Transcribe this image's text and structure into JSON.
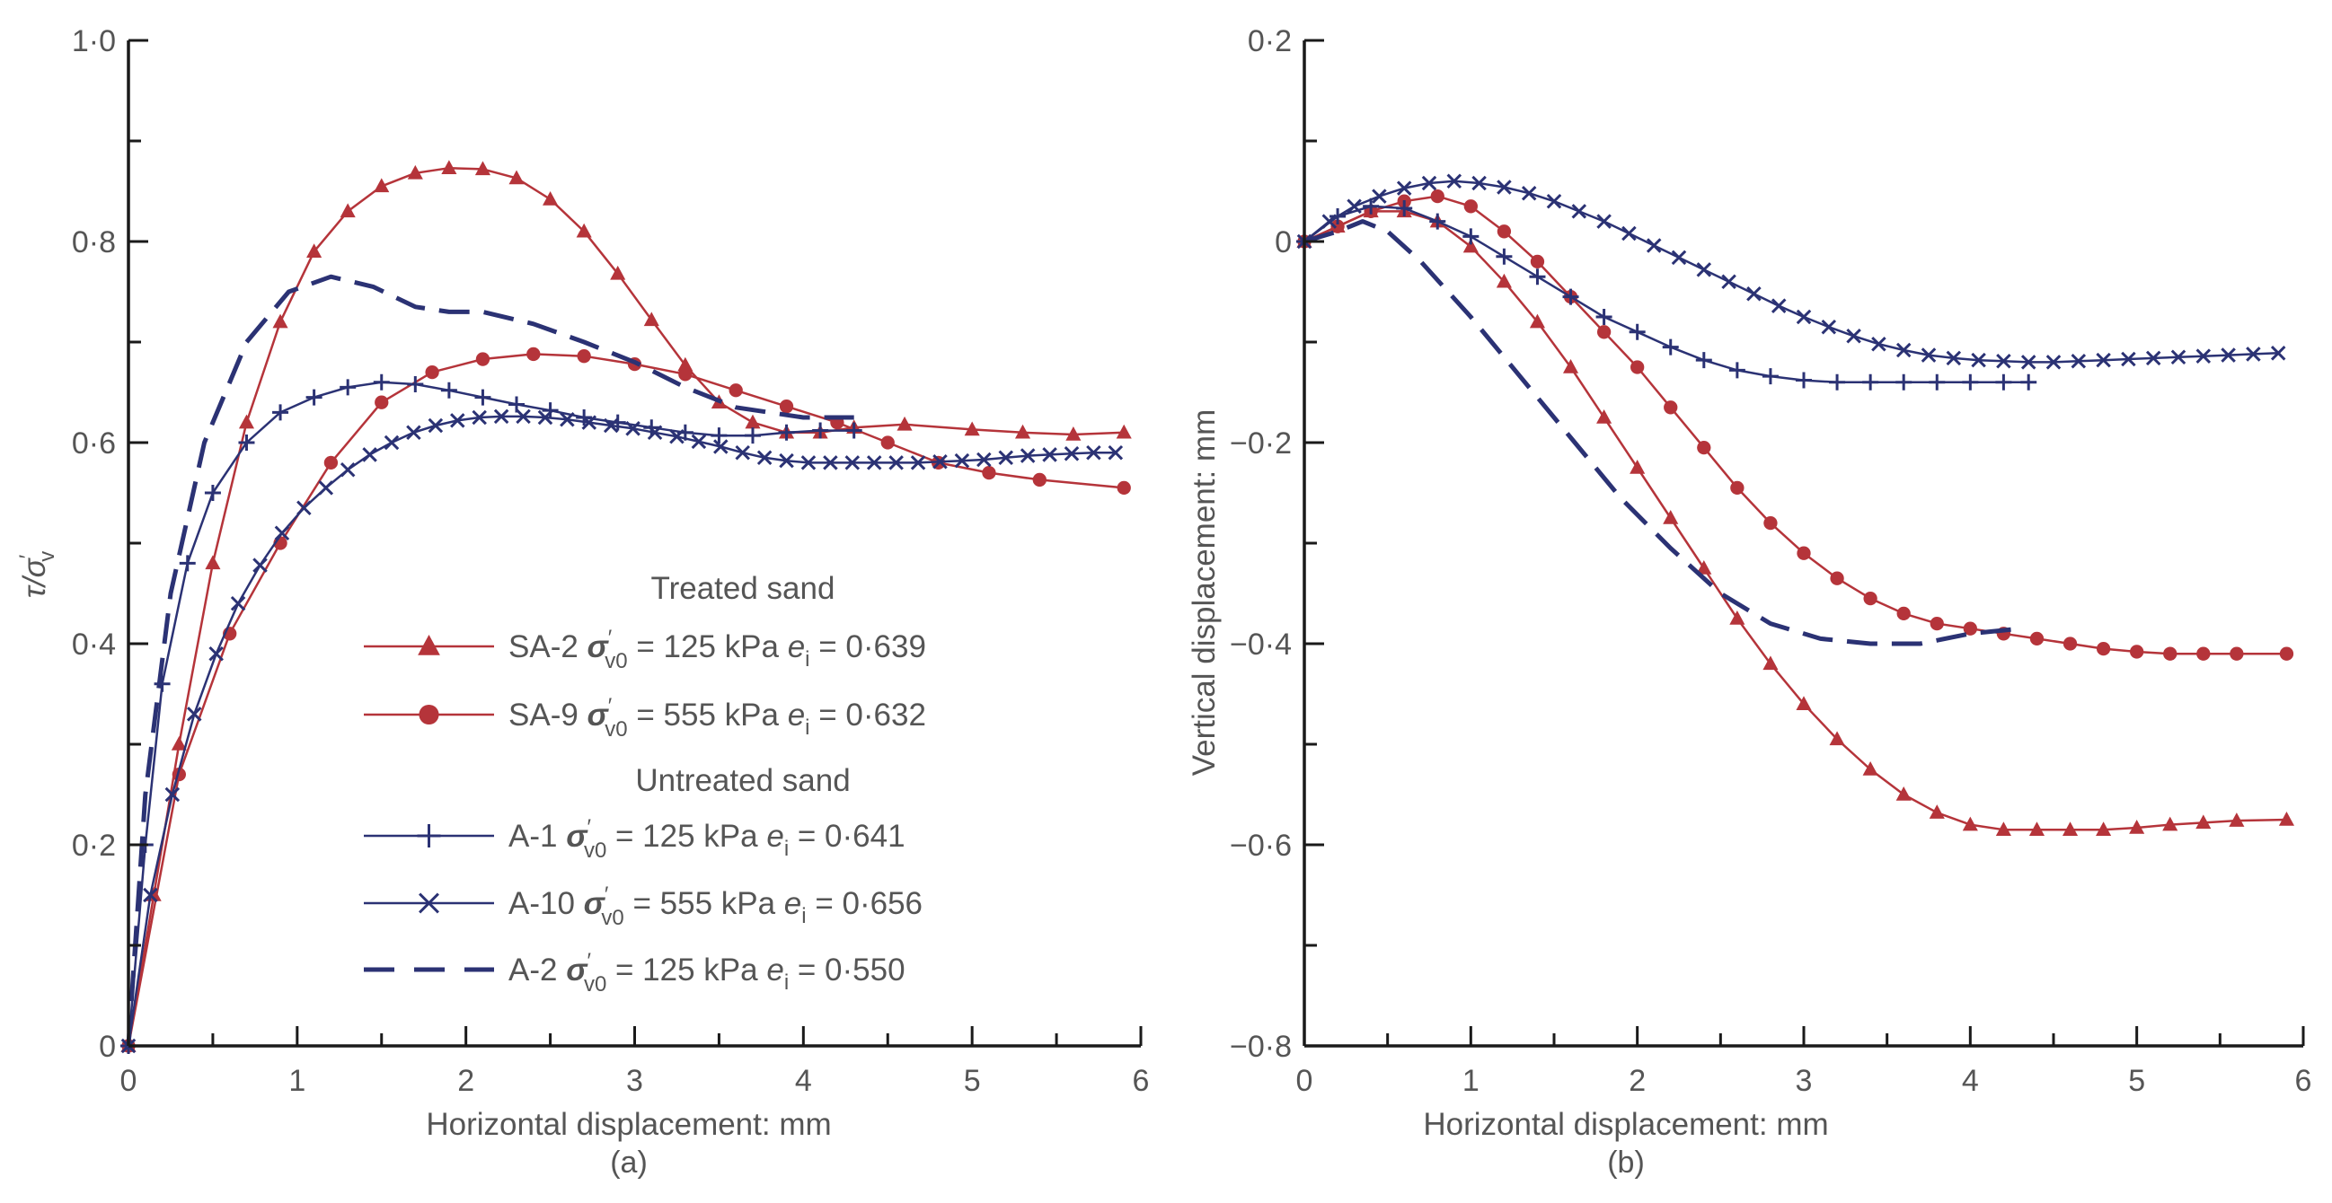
{
  "colors": {
    "red": "#b5343a",
    "blue": "#2b3274",
    "axis": "#1a1a1a",
    "text": "#555555"
  },
  "chart_data": [
    {
      "type": "line",
      "panel": "(a)",
      "xlabel": "Horizontal displacement: mm",
      "ylabel_main": "τ/σ",
      "ylabel_sub": "v",
      "ylabel_prime": "′",
      "xlim": [
        0,
        6
      ],
      "ylim": [
        0,
        1
      ],
      "xticks": [
        0,
        1,
        2,
        3,
        4,
        5,
        6
      ],
      "xtick_labels": [
        "0",
        "1",
        "2",
        "3",
        "4",
        "5",
        "6"
      ],
      "yticks": [
        0,
        0.2,
        0.4,
        0.6,
        0.8,
        1.0
      ],
      "ytick_labels": [
        "0",
        "0·2",
        "0·4",
        "0·6",
        "0·8",
        "1·0"
      ],
      "legend": {
        "position": "lower-center",
        "groups": [
          {
            "heading": "Treated sand",
            "entries": [
              {
                "series": "SA-2",
                "name": "SA-2",
                "sig": "σ",
                "sigsub": "v0",
                "sigprime": "′",
                "sval": " = 125 kPa ",
                "e": "e",
                "esub": "i",
                "eval": " = 0·639"
              },
              {
                "series": "SA-9",
                "name": "SA-9",
                "sig": "σ",
                "sigsub": "v0",
                "sigprime": "′",
                "sval": " = 555 kPa ",
                "e": "e",
                "esub": "i",
                "eval": " = 0·632"
              }
            ]
          },
          {
            "heading": "Untreated sand",
            "entries": [
              {
                "series": "A-1",
                "name": "A-1",
                "sig": "σ",
                "sigsub": "v0",
                "sigprime": "′",
                "sval": " = 125 kPa ",
                "e": "e",
                "esub": "i",
                "eval": " = 0·641"
              },
              {
                "series": "A-10",
                "name": "A-10",
                "sig": "σ",
                "sigsub": "v0",
                "sigprime": "′",
                "sval": " = 555 kPa ",
                "e": "e",
                "esub": "i",
                "eval": " = 0·656"
              },
              {
                "series": "A-2",
                "name": "A-2",
                "sig": "σ",
                "sigsub": "v0",
                "sigprime": "′",
                "sval": " = 125 kPa ",
                "e": "e",
                "esub": "i",
                "eval": " = 0·550"
              }
            ]
          }
        ]
      },
      "series": [
        {
          "name": "SA-2",
          "color": "#b5343a",
          "marker": "triangle",
          "dashed": false,
          "x": [
            0,
            0.15,
            0.3,
            0.5,
            0.7,
            0.9,
            1.1,
            1.3,
            1.5,
            1.7,
            1.9,
            2.1,
            2.3,
            2.5,
            2.7,
            2.9,
            3.1,
            3.3,
            3.5,
            3.7,
            3.9,
            4.1,
            4.3,
            4.6,
            5.0,
            5.3,
            5.6,
            5.9
          ],
          "y": [
            0,
            0.15,
            0.3,
            0.48,
            0.62,
            0.72,
            0.79,
            0.83,
            0.855,
            0.868,
            0.873,
            0.872,
            0.863,
            0.842,
            0.81,
            0.768,
            0.722,
            0.677,
            0.64,
            0.62,
            0.61,
            0.61,
            0.615,
            0.618,
            0.613,
            0.61,
            0.608,
            0.61
          ]
        },
        {
          "name": "SA-9",
          "color": "#b5343a",
          "marker": "circle",
          "dashed": false,
          "x": [
            0,
            0.3,
            0.6,
            0.9,
            1.2,
            1.5,
            1.8,
            2.1,
            2.4,
            2.7,
            3.0,
            3.3,
            3.6,
            3.9,
            4.2,
            4.5,
            4.8,
            5.1,
            5.4,
            5.9
          ],
          "y": [
            0,
            0.27,
            0.41,
            0.5,
            0.58,
            0.64,
            0.67,
            0.683,
            0.688,
            0.686,
            0.678,
            0.668,
            0.652,
            0.636,
            0.62,
            0.6,
            0.58,
            0.57,
            0.563,
            0.555
          ]
        },
        {
          "name": "A-1",
          "color": "#2b3274",
          "marker": "plus",
          "dashed": false,
          "x": [
            0,
            0.1,
            0.2,
            0.35,
            0.5,
            0.7,
            0.9,
            1.1,
            1.3,
            1.5,
            1.7,
            1.9,
            2.1,
            2.3,
            2.5,
            2.7,
            2.9,
            3.1,
            3.3,
            3.5,
            3.7,
            3.9,
            4.1,
            4.3
          ],
          "y": [
            0,
            0.2,
            0.36,
            0.48,
            0.55,
            0.6,
            0.63,
            0.645,
            0.655,
            0.66,
            0.658,
            0.652,
            0.645,
            0.638,
            0.632,
            0.625,
            0.62,
            0.615,
            0.61,
            0.607,
            0.607,
            0.61,
            0.612,
            0.612
          ]
        },
        {
          "name": "A-10",
          "color": "#2b3274",
          "marker": "cross",
          "dashed": false,
          "x": [
            0,
            0.13,
            0.26,
            0.39,
            0.52,
            0.65,
            0.78,
            0.91,
            1.04,
            1.17,
            1.3,
            1.43,
            1.56,
            1.69,
            1.82,
            1.95,
            2.08,
            2.21,
            2.34,
            2.47,
            2.6,
            2.73,
            2.86,
            2.99,
            3.12,
            3.25,
            3.38,
            3.51,
            3.64,
            3.77,
            3.9,
            4.03,
            4.16,
            4.29,
            4.42,
            4.55,
            4.68,
            4.81,
            4.94,
            5.07,
            5.2,
            5.33,
            5.46,
            5.59,
            5.72,
            5.85
          ],
          "y": [
            0,
            0.15,
            0.25,
            0.33,
            0.39,
            0.44,
            0.478,
            0.51,
            0.535,
            0.555,
            0.573,
            0.588,
            0.6,
            0.61,
            0.617,
            0.622,
            0.625,
            0.626,
            0.626,
            0.625,
            0.623,
            0.62,
            0.617,
            0.614,
            0.61,
            0.606,
            0.601,
            0.596,
            0.59,
            0.585,
            0.582,
            0.58,
            0.58,
            0.58,
            0.58,
            0.58,
            0.58,
            0.581,
            0.582,
            0.583,
            0.585,
            0.587,
            0.588,
            0.589,
            0.59,
            0.59
          ]
        },
        {
          "name": "A-2",
          "color": "#2b3274",
          "marker": "none",
          "dashed": true,
          "x": [
            0,
            0.1,
            0.25,
            0.45,
            0.7,
            0.95,
            1.2,
            1.45,
            1.7,
            1.9,
            2.1,
            2.4,
            2.7,
            3.0,
            3.3,
            3.6,
            4.0,
            4.3
          ],
          "y": [
            0,
            0.25,
            0.45,
            0.6,
            0.7,
            0.75,
            0.765,
            0.755,
            0.735,
            0.73,
            0.73,
            0.718,
            0.7,
            0.68,
            0.655,
            0.635,
            0.625,
            0.625
          ]
        }
      ]
    },
    {
      "type": "line",
      "panel": "(b)",
      "xlabel": "Horizontal displacement: mm",
      "ylabel": "Vertical displacement: mm",
      "xlim": [
        0,
        6
      ],
      "ylim": [
        -0.8,
        0.2
      ],
      "xticks": [
        0,
        1,
        2,
        3,
        4,
        5,
        6
      ],
      "xtick_labels": [
        "0",
        "1",
        "2",
        "3",
        "4",
        "5",
        "6"
      ],
      "yticks": [
        -0.8,
        -0.6,
        -0.4,
        -0.2,
        0,
        0.2
      ],
      "ytick_labels": [
        "−0·8",
        "−0·6",
        "−0·4",
        "−0·2",
        "0",
        "0·2"
      ],
      "series": [
        {
          "name": "SA-2",
          "color": "#b5343a",
          "marker": "triangle",
          "dashed": false,
          "x": [
            0,
            0.2,
            0.4,
            0.6,
            0.8,
            1.0,
            1.2,
            1.4,
            1.6,
            1.8,
            2.0,
            2.2,
            2.4,
            2.6,
            2.8,
            3.0,
            3.2,
            3.4,
            3.6,
            3.8,
            4.0,
            4.2,
            4.4,
            4.6,
            4.8,
            5.0,
            5.2,
            5.4,
            5.6,
            5.9
          ],
          "y": [
            0,
            0.015,
            0.03,
            0.03,
            0.02,
            -0.005,
            -0.04,
            -0.08,
            -0.125,
            -0.175,
            -0.225,
            -0.275,
            -0.325,
            -0.375,
            -0.42,
            -0.46,
            -0.495,
            -0.525,
            -0.55,
            -0.568,
            -0.58,
            -0.585,
            -0.585,
            -0.585,
            -0.585,
            -0.583,
            -0.58,
            -0.578,
            -0.576,
            -0.575
          ]
        },
        {
          "name": "SA-9",
          "color": "#b5343a",
          "marker": "circle",
          "dashed": false,
          "x": [
            0,
            0.2,
            0.4,
            0.6,
            0.8,
            1.0,
            1.2,
            1.4,
            1.6,
            1.8,
            2.0,
            2.2,
            2.4,
            2.6,
            2.8,
            3.0,
            3.2,
            3.4,
            3.6,
            3.8,
            4.0,
            4.2,
            4.4,
            4.6,
            4.8,
            5.0,
            5.2,
            5.4,
            5.6,
            5.9
          ],
          "y": [
            0,
            0.015,
            0.03,
            0.04,
            0.045,
            0.035,
            0.01,
            -0.02,
            -0.055,
            -0.09,
            -0.125,
            -0.165,
            -0.205,
            -0.245,
            -0.28,
            -0.31,
            -0.335,
            -0.355,
            -0.37,
            -0.38,
            -0.385,
            -0.39,
            -0.395,
            -0.4,
            -0.405,
            -0.408,
            -0.41,
            -0.41,
            -0.41,
            -0.41
          ]
        },
        {
          "name": "A-1",
          "color": "#2b3274",
          "marker": "plus",
          "dashed": false,
          "x": [
            0,
            0.2,
            0.4,
            0.6,
            0.8,
            1.0,
            1.2,
            1.4,
            1.6,
            1.8,
            2.0,
            2.2,
            2.4,
            2.6,
            2.8,
            3.0,
            3.2,
            3.4,
            3.6,
            3.8,
            4.0,
            4.2,
            4.35
          ],
          "y": [
            0,
            0.025,
            0.035,
            0.033,
            0.02,
            0.005,
            -0.015,
            -0.035,
            -0.055,
            -0.075,
            -0.09,
            -0.105,
            -0.118,
            -0.128,
            -0.134,
            -0.138,
            -0.14,
            -0.14,
            -0.14,
            -0.14,
            -0.14,
            -0.14,
            -0.14
          ]
        },
        {
          "name": "A-10",
          "color": "#2b3274",
          "marker": "cross",
          "dashed": false,
          "x": [
            0,
            0.15,
            0.3,
            0.45,
            0.6,
            0.75,
            0.9,
            1.05,
            1.2,
            1.35,
            1.5,
            1.65,
            1.8,
            1.95,
            2.1,
            2.25,
            2.4,
            2.55,
            2.7,
            2.85,
            3.0,
            3.15,
            3.3,
            3.45,
            3.6,
            3.75,
            3.9,
            4.05,
            4.2,
            4.35,
            4.5,
            4.65,
            4.8,
            4.95,
            5.1,
            5.25,
            5.4,
            5.55,
            5.7,
            5.85
          ],
          "y": [
            0,
            0.02,
            0.035,
            0.045,
            0.053,
            0.058,
            0.06,
            0.058,
            0.054,
            0.048,
            0.04,
            0.03,
            0.02,
            0.008,
            -0.004,
            -0.016,
            -0.028,
            -0.04,
            -0.052,
            -0.064,
            -0.075,
            -0.085,
            -0.094,
            -0.102,
            -0.108,
            -0.113,
            -0.116,
            -0.118,
            -0.119,
            -0.12,
            -0.12,
            -0.119,
            -0.118,
            -0.117,
            -0.116,
            -0.115,
            -0.114,
            -0.113,
            -0.112,
            -0.111
          ]
        },
        {
          "name": "A-2",
          "color": "#2b3274",
          "marker": "none",
          "dashed": true,
          "x": [
            0,
            0.2,
            0.35,
            0.5,
            0.7,
            1.0,
            1.3,
            1.6,
            1.9,
            2.2,
            2.5,
            2.8,
            3.1,
            3.4,
            3.7,
            4.0,
            4.3
          ],
          "y": [
            0,
            0.01,
            0.02,
            0.01,
            -0.02,
            -0.075,
            -0.135,
            -0.195,
            -0.255,
            -0.305,
            -0.35,
            -0.38,
            -0.395,
            -0.4,
            -0.4,
            -0.39,
            -0.385
          ]
        }
      ]
    }
  ]
}
